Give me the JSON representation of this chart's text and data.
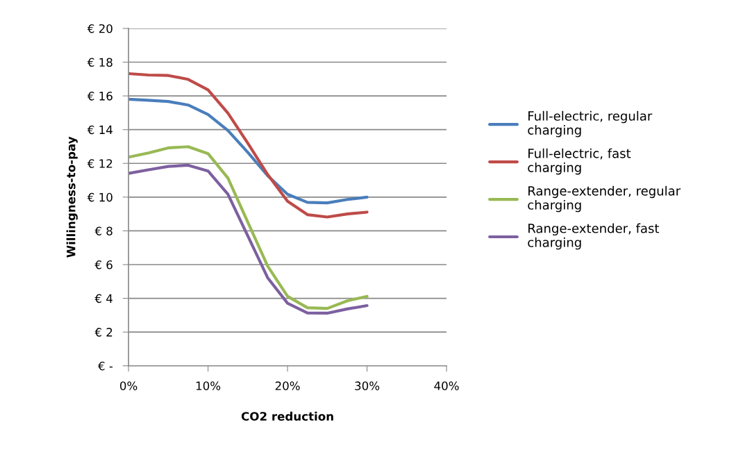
{
  "chart_data": {
    "type": "line",
    "xlabel": "CO2 reduction",
    "ylabel": "Willingness-to-pay",
    "x": [
      0,
      2.5,
      5,
      7.5,
      10,
      12.5,
      15,
      17.5,
      20,
      22.5,
      25,
      27.5,
      30
    ],
    "series": [
      {
        "name": "Full-electric, regular charging",
        "color": "#4a7ebb",
        "values": [
          15.8,
          15.74,
          15.67,
          15.46,
          14.9,
          13.95,
          12.65,
          11.27,
          10.17,
          9.69,
          9.66,
          9.86,
          10.0
        ]
      },
      {
        "name": "Full-electric, fast charging",
        "color": "#be4b48",
        "values": [
          17.32,
          17.24,
          17.21,
          16.98,
          16.36,
          14.98,
          13.2,
          11.34,
          9.76,
          8.96,
          8.82,
          9.0,
          9.11
        ]
      },
      {
        "name": "Range-extender, regular charging",
        "color": "#98b954",
        "values": [
          12.37,
          12.62,
          12.92,
          12.99,
          12.58,
          11.13,
          8.52,
          5.91,
          4.12,
          3.44,
          3.4,
          3.85,
          4.12
        ]
      },
      {
        "name": "Range-extender, fast charging",
        "color": "#7d60a0",
        "values": [
          11.41,
          11.62,
          11.82,
          11.89,
          11.55,
          10.17,
          7.7,
          5.22,
          3.71,
          3.13,
          3.12,
          3.37,
          3.57
        ]
      }
    ],
    "xlim": [
      0,
      40
    ],
    "xticks": [
      {
        "value": 0,
        "label": "0%"
      },
      {
        "value": 10,
        "label": "10%"
      },
      {
        "value": 20,
        "label": "20%"
      },
      {
        "value": 30,
        "label": "30%"
      },
      {
        "value": 40,
        "label": "40%"
      }
    ],
    "ylim": [
      0,
      20
    ],
    "yticks": [
      {
        "value": 0,
        "label": "€ -"
      },
      {
        "value": 2,
        "label": "€ 2"
      },
      {
        "value": 4,
        "label": "€ 4"
      },
      {
        "value": 6,
        "label": "€ 6"
      },
      {
        "value": 8,
        "label": "€ 8"
      },
      {
        "value": 10,
        "label": "€ 10"
      },
      {
        "value": 12,
        "label": "€ 12"
      },
      {
        "value": 14,
        "label": "€ 14"
      },
      {
        "value": 16,
        "label": "€ 16"
      },
      {
        "value": 18,
        "label": "€ 18"
      },
      {
        "value": 20,
        "label": "€ 20"
      }
    ],
    "grid": "y",
    "legend": "right",
    "marker": "none",
    "line_style": "solid"
  }
}
